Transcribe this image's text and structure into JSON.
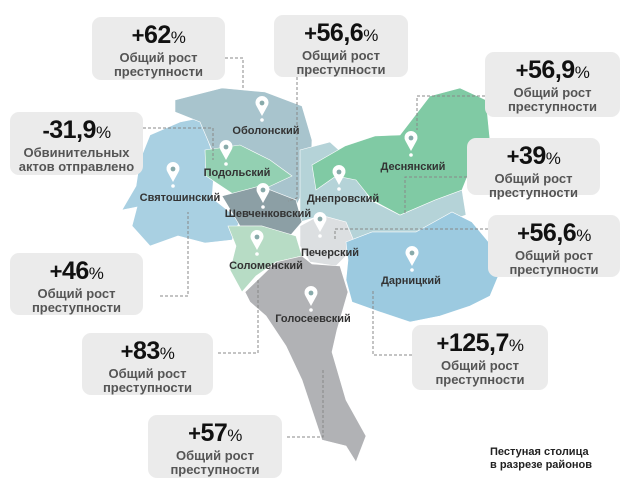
{
  "districts": [
    {
      "name": "Оболонский",
      "color": "#a8c4cd"
    },
    {
      "name": "Подольский",
      "color": "#93d0b2"
    },
    {
      "name": "Святошинский",
      "color": "#a9d0e2"
    },
    {
      "name": "Шевченковский",
      "color": "#8c9fa5"
    },
    {
      "name": "Соломенский",
      "color": "#b7dcc5"
    },
    {
      "name": "Печерский",
      "color": "#dcdfe1"
    },
    {
      "name": "Голосеевский",
      "color": "#b1b2b5"
    },
    {
      "name": "Дарницкий",
      "color": "#9ccae0"
    },
    {
      "name": "Днепровский",
      "color": "#b5d3d8"
    },
    {
      "name": "Деснянский",
      "color": "#80caa4"
    }
  ],
  "callouts": [
    {
      "sign": "+",
      "value": "62",
      "pct": "%",
      "line1": "Общий рост",
      "line2": "преступности"
    },
    {
      "sign": "+",
      "value": "56,6",
      "pct": "%",
      "line1": "Общий рост",
      "line2": "преступности"
    },
    {
      "sign": "+",
      "value": "56,9",
      "pct": "%",
      "line1": "Общий рост",
      "line2": "преступности"
    },
    {
      "sign": "-",
      "value": "31,9",
      "pct": "%",
      "line1": "Обвинительных",
      "line2": "актов отправлено"
    },
    {
      "sign": "+",
      "value": "39",
      "pct": "%",
      "line1": "Общий рост",
      "line2": "преступности"
    },
    {
      "sign": "+",
      "value": "56,6",
      "pct": "%",
      "line1": "Общий рост",
      "line2": "преступности"
    },
    {
      "sign": "+",
      "value": "46",
      "pct": "%",
      "line1": "Общий рост",
      "line2": "преступности"
    },
    {
      "sign": "+",
      "value": "83",
      "pct": "%",
      "line1": "Общий рост",
      "line2": "преступности"
    },
    {
      "sign": "+",
      "value": "125,7",
      "pct": "%",
      "line1": "Общий рост",
      "line2": "преступности"
    },
    {
      "sign": "+",
      "value": "57",
      "pct": "%",
      "line1": "Общий рост",
      "line2": "преступности"
    }
  ],
  "footer": {
    "line1": "Пестуная столица",
    "line2": "в разрезе районов"
  },
  "pin_icon": "map-pin-icon"
}
